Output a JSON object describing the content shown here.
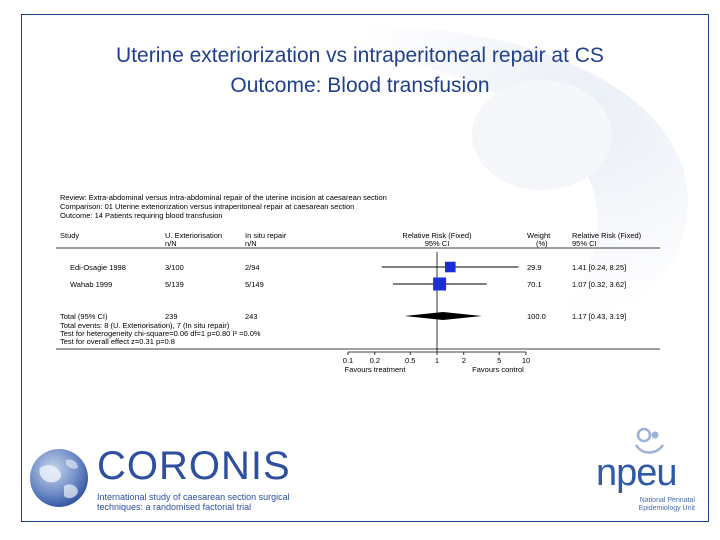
{
  "slide": {
    "title_line1": "Uterine exteriorization vs intraperitoneal repair at CS",
    "title_line2": "Outcome: Blood transfusion",
    "accent_color": "#1f3f8f"
  },
  "header": {
    "review": "Review:  Extra-abdominal versus intra-abdominal repair of the uterine incision at caesarean section",
    "comparison": "Comparison:  01  Uterine exteriorization versus intraperitoneal repair at caesarean section",
    "outcome": "Outcome:  14 Patients requiring blood transfusion"
  },
  "columns": {
    "study": "Study",
    "treatment": "U. Exteriorisation",
    "treatment_sub": "n/N",
    "control": "In situ repair",
    "control_sub": "n/N",
    "rr": "Relative Risk (Fixed)",
    "rr_sub": "95% CI",
    "weight": "Weight",
    "weight_sub": "(%)",
    "rr2": "Relative Risk (Fixed)",
    "rr2_sub": "95% CI"
  },
  "footer": {
    "total_events": "Total events: 8 (U. Exteriorisation), 7 (In situ repair)",
    "heterogeneity": "Test for heterogeneity chi-square=0.06 df=1 p=0.80  I² =0.0%",
    "overall": "Test for overall effect z=0.31  p=0.8"
  },
  "axis": {
    "favours_left": "Favours treatment",
    "favours_right": "Favours control"
  },
  "chart_data": {
    "type": "forest",
    "scale": "log",
    "xlim": [
      0.1,
      10
    ],
    "ticks": [
      0.1,
      0.2,
      0.5,
      1,
      2,
      5,
      10
    ],
    "tick_labels": [
      "0.1",
      "0.2",
      "0.5",
      "1",
      "2",
      "5",
      "10"
    ],
    "studies": [
      {
        "study": "Edi-Osagie 1998",
        "treatment": "3/100",
        "control": "2/94",
        "weight": "29.9",
        "rr": 1.41,
        "ci": [
          0.24,
          8.25
        ],
        "rr_text": "1.41 [0.24, 8.25]"
      },
      {
        "study": "Wahab 1999",
        "treatment": "5/139",
        "control": "5/149",
        "weight": "70.1",
        "rr": 1.07,
        "ci": [
          0.32,
          3.62
        ],
        "rr_text": "1.07 [0.32, 3.62]"
      }
    ],
    "total": {
      "study": "Total (95% CI)",
      "treatment": "239",
      "control": "243",
      "weight": "100.0",
      "rr": 1.17,
      "ci": [
        0.43,
        3.19
      ],
      "rr_text": "1.17 [0.43, 3.19]"
    }
  },
  "branding": {
    "coronis_name": "CORONIS",
    "coronis_tagline": "International study of caesarean section surgical techniques: a randomised factorial trial",
    "npeu_name": "npeu",
    "npeu_tagline": "National Perinatal Epidemiology Unit",
    "coronis_color": "#2c4f9e",
    "npeu_color": "#2f5aa8"
  }
}
